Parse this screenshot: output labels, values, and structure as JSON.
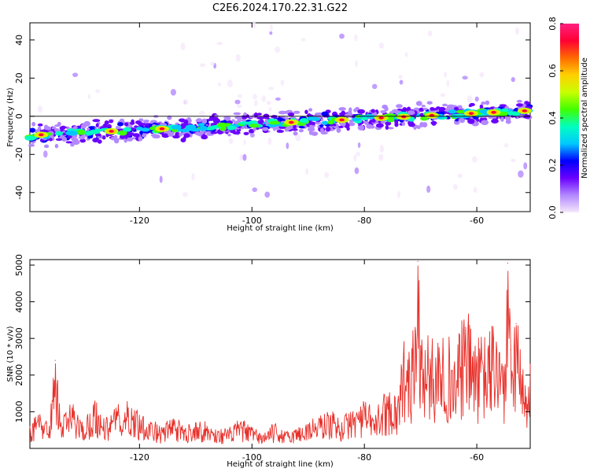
{
  "chart_data": [
    {
      "type": "heatmap",
      "title": "C2E6.2024.170.22.31.G22",
      "xlabel": "Height of straight line (km)",
      "ylabel": "Frequency (Hz)",
      "xlim": [
        -139.5,
        -50.5
      ],
      "ylim": [
        -50,
        49
      ],
      "x_ticks": [
        -120,
        -100,
        -80,
        -60
      ],
      "y_ticks": [
        -40,
        -20,
        0,
        20,
        40
      ],
      "colorbar": {
        "label": "Normalized spectral amplitude",
        "range": [
          0.0,
          0.8
        ],
        "ticks": [
          0.0,
          0.2,
          0.4,
          0.6,
          0.8
        ],
        "colormap": "rainbow",
        "colors": [
          "#f6e8fb",
          "#b388ff",
          "#6a00ff",
          "#0000ff",
          "#00c8ff",
          "#00ffc0",
          "#40ff00",
          "#c8ff00",
          "#ffd000",
          "#ff6a00",
          "#ff0033",
          "#ff2080"
        ]
      },
      "band": {
        "start": [
          -139.5,
          -10
        ],
        "end": [
          -50.5,
          3
        ],
        "peak_x": [
          -137.5,
          -125,
          -116,
          -93,
          -84,
          -77,
          -73,
          -68,
          -61,
          -57,
          -51.5
        ]
      }
    },
    {
      "type": "line",
      "xlabel": "Height of straight line (km)",
      "ylabel": "SNR (10 * v/v)",
      "xlim": [
        -139.5,
        -50.5
      ],
      "ylim": [
        0,
        5150
      ],
      "x_ticks": [
        -120,
        -100,
        -80,
        -60
      ],
      "y_ticks": [
        1000,
        2000,
        3000,
        4000,
        5000
      ],
      "color": "#e8302a",
      "x": [
        -139.5,
        -138,
        -136,
        -135,
        -134,
        -132,
        -130,
        -128,
        -126,
        -124,
        -122,
        -120,
        -118,
        -116,
        -114,
        -112,
        -110,
        -108,
        -106,
        -104,
        -102,
        -100,
        -98,
        -96,
        -94,
        -92,
        -90,
        -88,
        -86,
        -84,
        -82,
        -80,
        -78,
        -76,
        -74,
        -73,
        -72,
        -71,
        -70.5,
        -70,
        -68,
        -66,
        -64,
        -62,
        -60,
        -58,
        -57,
        -56,
        -55,
        -54.5,
        -54,
        -53,
        -52,
        -51,
        -50.5
      ],
      "y": [
        600,
        900,
        600,
        2400,
        700,
        1100,
        600,
        1200,
        700,
        1000,
        1100,
        900,
        700,
        500,
        800,
        500,
        700,
        600,
        450,
        500,
        700,
        500,
        350,
        600,
        400,
        500,
        650,
        800,
        900,
        700,
        1000,
        1100,
        900,
        1400,
        1300,
        2600,
        2200,
        3200,
        5100,
        2800,
        2500,
        3000,
        2200,
        3300,
        2500,
        2700,
        3000,
        2600,
        2000,
        5050,
        2700,
        3400,
        2000,
        1200,
        2300
      ]
    }
  ]
}
